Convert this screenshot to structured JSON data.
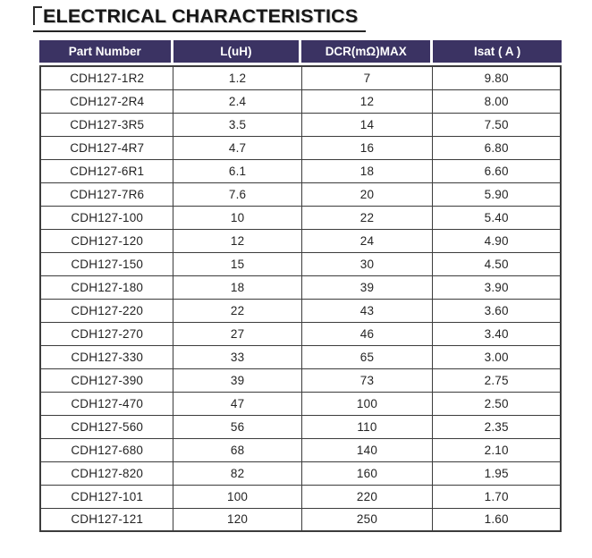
{
  "title": "ELECTRICAL CHARACTERISTICS",
  "colors": {
    "header_bg": "#3b3363",
    "header_text": "#ffffff",
    "body_text": "#242424",
    "border": "#3c3c3c",
    "title_text": "#161616"
  },
  "table": {
    "columns": [
      "Part Number",
      "L(uH)",
      "DCR(mΩ)MAX",
      "Isat ( A )"
    ],
    "rows": [
      [
        "CDH127-1R2",
        "1.2",
        "7",
        "9.80"
      ],
      [
        "CDH127-2R4",
        "2.4",
        "12",
        "8.00"
      ],
      [
        "CDH127-3R5",
        "3.5",
        "14",
        "7.50"
      ],
      [
        "CDH127-4R7",
        "4.7",
        "16",
        "6.80"
      ],
      [
        "CDH127-6R1",
        "6.1",
        "18",
        "6.60"
      ],
      [
        "CDH127-7R6",
        "7.6",
        "20",
        "5.90"
      ],
      [
        "CDH127-100",
        "10",
        "22",
        "5.40"
      ],
      [
        "CDH127-120",
        "12",
        "24",
        "4.90"
      ],
      [
        "CDH127-150",
        "15",
        "30",
        "4.50"
      ],
      [
        "CDH127-180",
        "18",
        "39",
        "3.90"
      ],
      [
        "CDH127-220",
        "22",
        "43",
        "3.60"
      ],
      [
        "CDH127-270",
        "27",
        "46",
        "3.40"
      ],
      [
        "CDH127-330",
        "33",
        "65",
        "3.00"
      ],
      [
        "CDH127-390",
        "39",
        "73",
        "2.75"
      ],
      [
        "CDH127-470",
        "47",
        "100",
        "2.50"
      ],
      [
        "CDH127-560",
        "56",
        "110",
        "2.35"
      ],
      [
        "CDH127-680",
        "68",
        "140",
        "2.10"
      ],
      [
        "CDH127-820",
        "82",
        "160",
        "1.95"
      ],
      [
        "CDH127-101",
        "100",
        "220",
        "1.70"
      ],
      [
        "CDH127-121",
        "120",
        "250",
        "1.60"
      ]
    ]
  }
}
